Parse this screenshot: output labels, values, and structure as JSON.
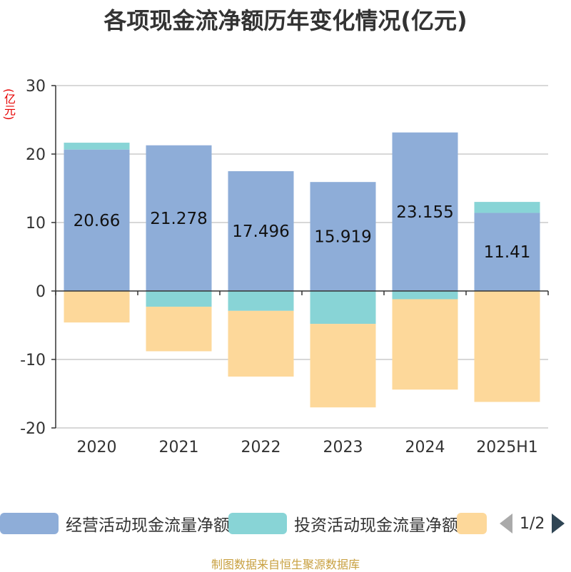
{
  "title": "各项现金流净额历年变化情况(亿元)",
  "unit_label": "(亿元)",
  "source": "制图数据来自恒生聚源数据库",
  "pager": {
    "text": "1/2",
    "prev_icon": "triangle-left-icon",
    "next_icon": "triangle-right-icon"
  },
  "chart_data": {
    "type": "bar",
    "stacked": true,
    "categories": [
      "2020",
      "2021",
      "2022",
      "2023",
      "2024",
      "2025H1"
    ],
    "ylim": [
      -20,
      30
    ],
    "yticks": [
      30,
      20,
      10,
      0,
      -10,
      -20
    ],
    "grid": true,
    "legend_position": "bottom",
    "series": [
      {
        "name": "经营活动现金流量净额",
        "color": "#8eadd8",
        "values": [
          20.66,
          21.278,
          17.496,
          15.919,
          23.155,
          11.41
        ],
        "labels": [
          "20.66",
          "21.278",
          "17.496",
          "15.919",
          "23.155",
          "11.41"
        ]
      },
      {
        "name": "投资活动现金流量净额",
        "color": "#88d4d6",
        "values": [
          1.0,
          -2.3,
          -2.9,
          -4.8,
          -1.2,
          1.6
        ]
      },
      {
        "name": "",
        "color": "#fdd89a",
        "values": [
          -4.6,
          -6.5,
          -9.6,
          -12.2,
          -13.2,
          -16.2
        ]
      }
    ]
  }
}
